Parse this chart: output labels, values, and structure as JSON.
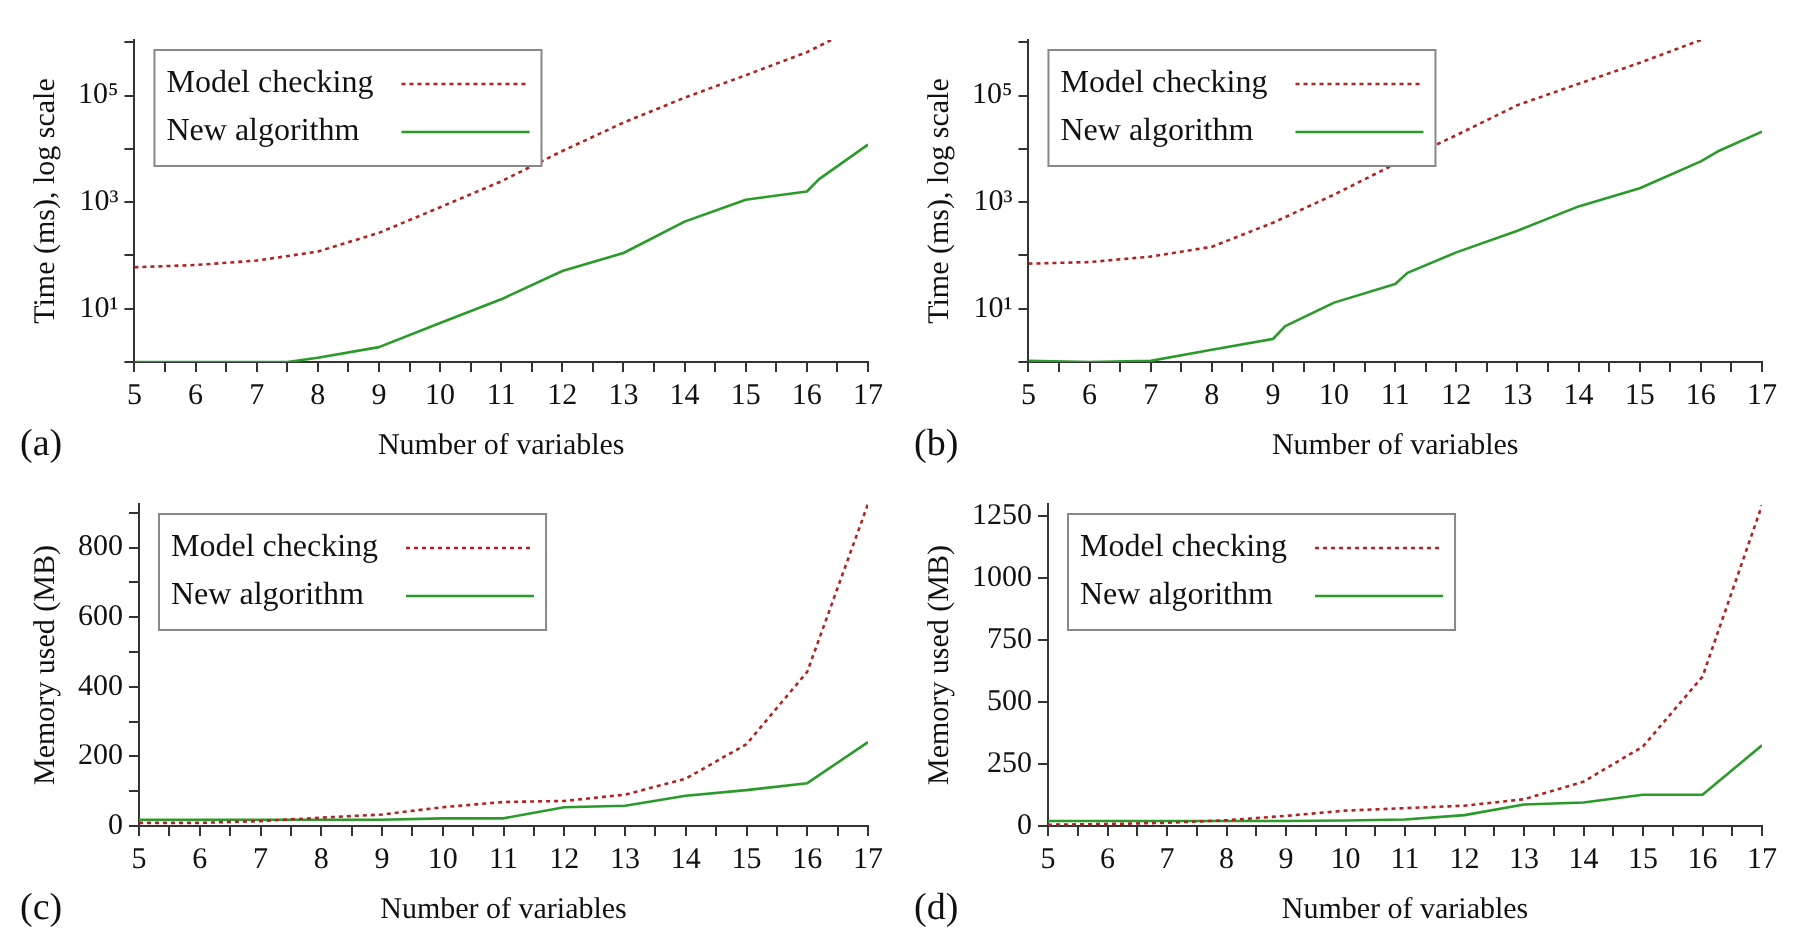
{
  "chart_data": [
    {
      "type": "line",
      "xlabel": "Number of variables",
      "ylabel": "Time (ms), log scale",
      "annotations": [
        "(a)"
      ],
      "log": "y",
      "grid": false,
      "legend": "top left",
      "marker": "none",
      "xlim": [
        5,
        17
      ],
      "xticks": [
        5,
        {
          "value": 5.5,
          "label": null
        },
        6,
        {
          "value": 6.5,
          "label": null
        },
        7,
        {
          "value": 7.5,
          "label": null
        },
        8,
        {
          "value": 8.5,
          "label": null
        },
        9,
        {
          "value": 9.5,
          "label": null
        },
        10,
        {
          "value": 10.5,
          "label": null
        },
        11,
        {
          "value": 11.5,
          "label": null
        },
        12,
        {
          "value": 12.5,
          "label": null
        },
        13,
        {
          "value": 13.5,
          "label": null
        },
        14,
        {
          "value": 14.5,
          "label": null
        },
        15,
        {
          "value": 15.5,
          "label": null
        },
        16,
        {
          "value": 16.5,
          "label": null
        },
        17
      ],
      "ylim": [
        1,
        1100000
      ],
      "yticks": [
        {
          "value": 1,
          "label": null
        },
        {
          "value": 10,
          "label": "10¹"
        },
        {
          "value": 100,
          "label": null
        },
        {
          "value": 1000,
          "label": "10³"
        },
        {
          "value": 10000,
          "label": null
        },
        {
          "value": 100000,
          "label": "10⁵"
        },
        {
          "value": 1000000,
          "label": null
        }
      ],
      "series": [
        {
          "name": "Model checking",
          "color": "#b22222",
          "line_style": "dotted",
          "x": [
            5,
            6,
            7,
            8,
            9,
            10,
            11,
            12,
            13,
            14,
            15,
            16,
            16.4
          ],
          "values": [
            60,
            66,
            80,
            118,
            265,
            800,
            2450,
            9100,
            31000,
            91000,
            240000,
            650000,
            1100000
          ]
        },
        {
          "name": "New algorithm",
          "color": "#2a9a2a",
          "line_style": "solid",
          "x": [
            5,
            6,
            7,
            7.5,
            8,
            9,
            10,
            11,
            12,
            13,
            14,
            15,
            16,
            16.2,
            17
          ],
          "values": [
            1,
            1,
            1,
            1,
            1.2,
            1.9,
            5.4,
            15,
            51,
            111,
            430,
            1110,
            1580,
            2700,
            12000
          ]
        }
      ]
    },
    {
      "type": "line",
      "xlabel": "Number of variables",
      "ylabel": "Time (ms), log scale",
      "annotations": [
        "(b)"
      ],
      "log": "y",
      "grid": false,
      "legend": "top left",
      "marker": "none",
      "xlim": [
        5,
        17
      ],
      "xticks": [
        5,
        {
          "value": 5.5,
          "label": null
        },
        6,
        {
          "value": 6.5,
          "label": null
        },
        7,
        {
          "value": 7.5,
          "label": null
        },
        8,
        {
          "value": 8.5,
          "label": null
        },
        9,
        {
          "value": 9.5,
          "label": null
        },
        10,
        {
          "value": 10.5,
          "label": null
        },
        11,
        {
          "value": 11.5,
          "label": null
        },
        12,
        {
          "value": 12.5,
          "label": null
        },
        13,
        {
          "value": 13.5,
          "label": null
        },
        14,
        {
          "value": 14.5,
          "label": null
        },
        15,
        {
          "value": 15.5,
          "label": null
        },
        16,
        {
          "value": 16.5,
          "label": null
        },
        17
      ],
      "ylim": [
        1,
        1100000
      ],
      "yticks": [
        {
          "value": 1,
          "label": null
        },
        {
          "value": 10,
          "label": "10¹"
        },
        {
          "value": 100,
          "label": null
        },
        {
          "value": 1000,
          "label": "10³"
        },
        {
          "value": 10000,
          "label": null
        },
        {
          "value": 100000,
          "label": "10⁵"
        },
        {
          "value": 1000000,
          "label": null
        }
      ],
      "series": [
        {
          "name": "Model checking",
          "color": "#b22222",
          "line_style": "dotted",
          "x": [
            5,
            6,
            7,
            8,
            9,
            10,
            11,
            12,
            13,
            14,
            15,
            16
          ],
          "values": [
            70,
            75,
            95,
            145,
            410,
            1380,
            5200,
            18000,
            66000,
            166000,
            410000,
            1100000
          ]
        },
        {
          "name": "New algorithm",
          "color": "#2a9a2a",
          "line_style": "solid",
          "x": [
            5,
            6,
            7,
            8,
            9,
            9.2,
            10,
            11,
            11.2,
            12,
            13,
            14,
            15,
            16,
            16.3,
            17
          ],
          "values": [
            1.05,
            1,
            1.05,
            1.7,
            2.7,
            4.7,
            13,
            29,
            47,
            114,
            290,
            830,
            1820,
            5800,
            9200,
            21000
          ]
        }
      ]
    },
    {
      "type": "line",
      "xlabel": "Number of variables",
      "ylabel": "Memory used (MB)",
      "annotations": [
        "(c)"
      ],
      "grid": false,
      "legend": "top left",
      "marker": "none",
      "x": [
        5,
        6,
        7,
        8,
        9,
        10,
        11,
        12,
        13,
        14,
        15,
        16,
        17
      ],
      "xlim": [
        5,
        17
      ],
      "xticks": [
        5,
        {
          "value": 5.5,
          "label": null
        },
        6,
        {
          "value": 6.5,
          "label": null
        },
        7,
        {
          "value": 7.5,
          "label": null
        },
        8,
        {
          "value": 8.5,
          "label": null
        },
        9,
        {
          "value": 9.5,
          "label": null
        },
        10,
        {
          "value": 10.5,
          "label": null
        },
        11,
        {
          "value": 11.5,
          "label": null
        },
        12,
        {
          "value": 12.5,
          "label": null
        },
        13,
        {
          "value": 13.5,
          "label": null
        },
        14,
        {
          "value": 14.5,
          "label": null
        },
        15,
        {
          "value": 15.5,
          "label": null
        },
        16,
        {
          "value": 16.5,
          "label": null
        },
        17
      ],
      "ylim": [
        0,
        925
      ],
      "yticks": [
        0,
        {
          "value": 100,
          "label": null
        },
        200,
        {
          "value": 300,
          "label": null
        },
        400,
        {
          "value": 500,
          "label": null
        },
        600,
        {
          "value": 700,
          "label": null
        },
        800,
        {
          "value": 900,
          "label": null
        }
      ],
      "series": [
        {
          "name": "Model checking",
          "color": "#b22222",
          "line_style": "dotted",
          "values": [
            9,
            9,
            14,
            24,
            33,
            54,
            69,
            72,
            90,
            136,
            235,
            443,
            925
          ]
        },
        {
          "name": "New algorithm",
          "color": "#2a9a2a",
          "line_style": "solid",
          "values": [
            18,
            18,
            18,
            18,
            18,
            22,
            22,
            54,
            58,
            87,
            103,
            123,
            241
          ]
        }
      ]
    },
    {
      "type": "line",
      "xlabel": "Number of variables",
      "ylabel": "Memory used (MB)",
      "annotations": [
        "(d)"
      ],
      "grid": false,
      "legend": "top left",
      "marker": "none",
      "x": [
        5,
        6,
        7,
        8,
        9,
        10,
        11,
        12,
        13,
        14,
        15,
        16,
        17
      ],
      "xlim": [
        5,
        17
      ],
      "xticks": [
        5,
        {
          "value": 5.5,
          "label": null
        },
        6,
        {
          "value": 6.5,
          "label": null
        },
        7,
        {
          "value": 7.5,
          "label": null
        },
        8,
        {
          "value": 8.5,
          "label": null
        },
        9,
        {
          "value": 9.5,
          "label": null
        },
        10,
        {
          "value": 10.5,
          "label": null
        },
        11,
        {
          "value": 11.5,
          "label": null
        },
        12,
        {
          "value": 12.5,
          "label": null
        },
        13,
        {
          "value": 13.5,
          "label": null
        },
        14,
        {
          "value": 14.5,
          "label": null
        },
        15,
        {
          "value": 15.5,
          "label": null
        },
        16,
        {
          "value": 16.5,
          "label": null
        },
        17
      ],
      "ylim": [
        0,
        1300
      ],
      "yticks": [
        0,
        250,
        500,
        750,
        1000,
        1250
      ],
      "series": [
        {
          "name": "Model checking",
          "color": "#b22222",
          "line_style": "dotted",
          "values": [
            5,
            8,
            13,
            23,
            41,
            62,
            72,
            82,
            108,
            179,
            321,
            603,
            1295
          ]
        },
        {
          "name": "New algorithm",
          "color": "#2a9a2a",
          "line_style": "solid",
          "values": [
            20,
            20,
            20,
            20,
            20,
            22,
            26,
            44,
            87,
            95,
            126,
            126,
            326
          ]
        }
      ]
    }
  ]
}
